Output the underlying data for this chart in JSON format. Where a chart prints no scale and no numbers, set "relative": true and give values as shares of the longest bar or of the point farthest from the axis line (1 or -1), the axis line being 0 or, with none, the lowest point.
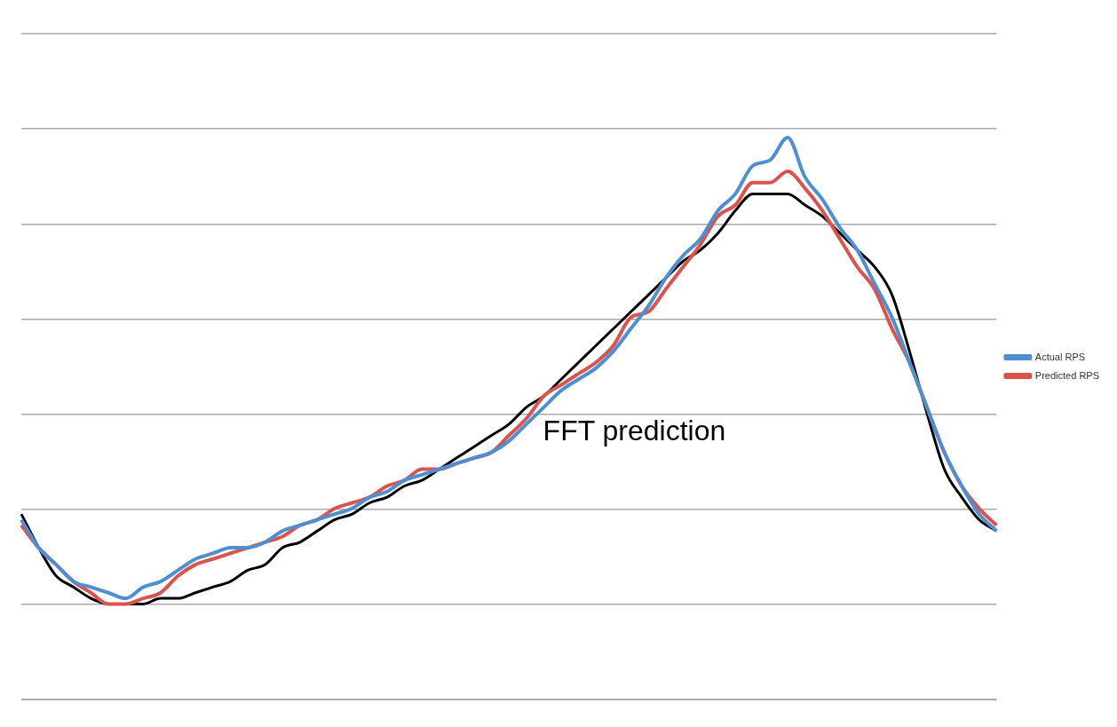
{
  "chart_data": {
    "type": "line",
    "relative": true,
    "grid": "y",
    "legend": "right",
    "marker": "none",
    "line_style": "solid",
    "categories": [
      null,
      null,
      null,
      null,
      null,
      null,
      null,
      null,
      null,
      null,
      null,
      null,
      null,
      null,
      null,
      null,
      null,
      null,
      null,
      null,
      null,
      null,
      null,
      null,
      null,
      null,
      null,
      null,
      null,
      null,
      null,
      null,
      null,
      null,
      null,
      null,
      null,
      null,
      null,
      null,
      null,
      null,
      null,
      null,
      null,
      null,
      null,
      null,
      null,
      null,
      null,
      null,
      null,
      null,
      null,
      null,
      null
    ],
    "series": [
      {
        "name": "Actual RPS",
        "color": "#4f8fd0",
        "values": [
          0.32,
          0.27,
          0.24,
          0.21,
          0.2,
          0.19,
          0.18,
          0.2,
          0.21,
          0.23,
          0.25,
          0.26,
          0.27,
          0.27,
          0.28,
          0.3,
          0.31,
          0.32,
          0.33,
          0.34,
          0.36,
          0.37,
          0.39,
          0.4,
          0.41,
          0.42,
          0.43,
          0.44,
          0.46,
          0.49,
          0.52,
          0.55,
          0.57,
          0.59,
          0.62,
          0.66,
          0.7,
          0.75,
          0.79,
          0.82,
          0.87,
          0.9,
          0.95,
          0.96,
          1.0,
          0.93,
          0.89,
          0.84,
          0.8,
          0.74,
          0.68,
          0.6,
          0.52,
          0.44,
          0.38,
          0.33,
          0.3
        ]
      },
      {
        "name": "Predicted RPS",
        "color": "#d9534f",
        "values": [
          0.31,
          0.27,
          0.24,
          0.21,
          0.19,
          0.17,
          0.17,
          0.18,
          0.19,
          0.22,
          0.24,
          0.25,
          0.26,
          0.27,
          0.28,
          0.29,
          0.31,
          0.32,
          0.34,
          0.35,
          0.36,
          0.38,
          0.39,
          0.41,
          0.41,
          0.42,
          0.43,
          0.44,
          0.47,
          0.5,
          0.54,
          0.56,
          0.58,
          0.6,
          0.63,
          0.68,
          0.69,
          0.73,
          0.77,
          0.81,
          0.86,
          0.88,
          0.92,
          0.92,
          0.94,
          0.91,
          0.87,
          0.82,
          0.77,
          0.73,
          0.66,
          0.6,
          0.52,
          0.44,
          0.38,
          0.34,
          0.31
        ]
      },
      {
        "color": "#000000",
        "values": [
          0.33,
          0.27,
          0.22,
          0.2,
          0.18,
          0.17,
          0.17,
          0.17,
          0.18,
          0.18,
          0.19,
          0.2,
          0.21,
          0.23,
          0.24,
          0.27,
          0.28,
          0.3,
          0.32,
          0.33,
          0.35,
          0.36,
          0.38,
          0.39,
          0.41,
          0.43,
          0.45,
          0.47,
          0.49,
          0.52,
          0.54,
          0.57,
          0.6,
          0.63,
          0.66,
          0.69,
          0.72,
          0.75,
          0.78,
          0.8,
          0.83,
          0.87,
          0.9,
          0.9,
          0.9,
          0.88,
          0.86,
          0.83,
          0.8,
          0.77,
          0.72,
          0.62,
          0.51,
          0.41,
          0.36,
          0.32,
          0.3
        ]
      }
    ],
    "annotations": [
      "FFT prediction"
    ]
  }
}
